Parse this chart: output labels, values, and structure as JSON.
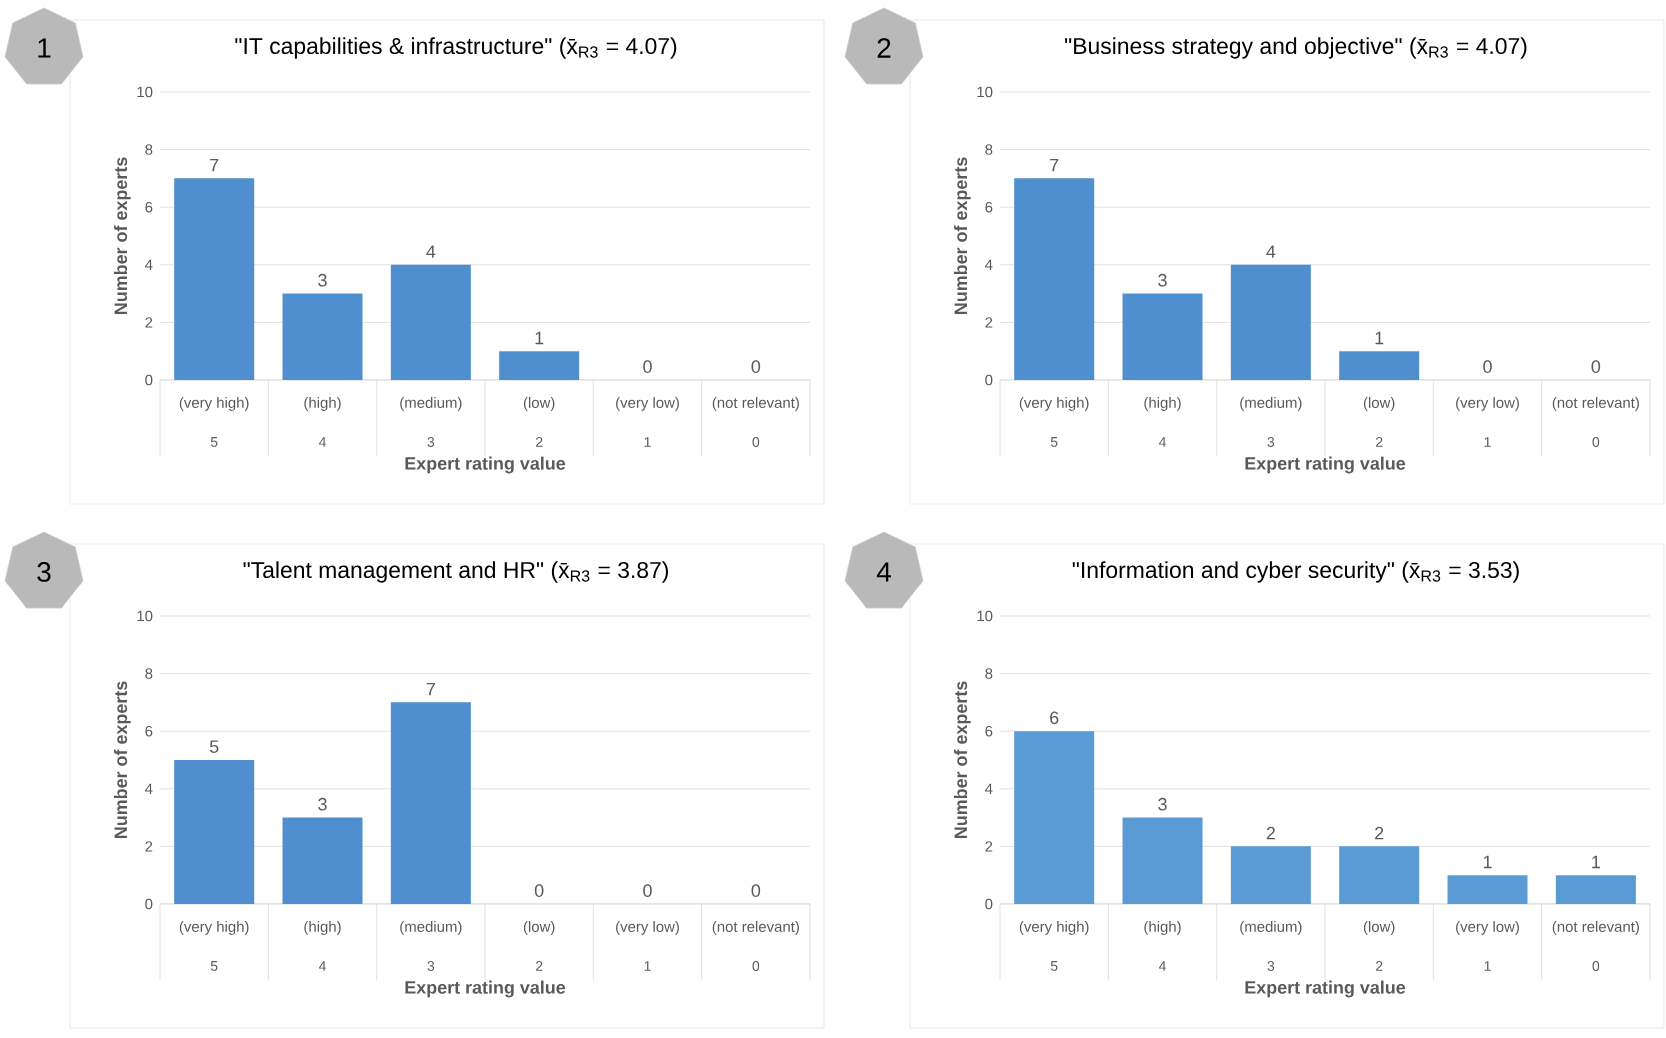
{
  "chart_data": [
    {
      "type": "bar",
      "title": "\"IT capabilities & infrastructure\" (x̄$_{R3}$ = 4.07)",
      "xlabel": "Expert rating value",
      "ylabel": "Number of experts",
      "categories": [
        "(very  high)",
        "(high)",
        "(medium)",
        "(low)",
        "(very low)",
        "(not relevant)"
      ],
      "values": [
        7,
        3,
        4,
        1,
        0,
        0
      ],
      "color": "#4f8fcf",
      "ylim": [
        0,
        10
      ],
      "yticks": [
        0,
        2,
        4,
        6,
        8,
        10
      ],
      "grid": "y",
      "data_labels": true,
      "annotations": [
        "1",
        "5",
        "4",
        "3",
        "2",
        "1",
        "0"
      ]
    },
    {
      "type": "bar",
      "title": "\"Business strategy and objective\" (x̄$_{R3}$ = 4.07)",
      "xlabel": "Expert rating value",
      "ylabel": "Number of experts",
      "categories": [
        "(very  high)",
        "(high)",
        "(medium)",
        "(low)",
        "(very low)",
        "(not relevant)"
      ],
      "values": [
        7,
        3,
        4,
        1,
        0,
        0
      ],
      "color": "#4f8fcf",
      "ylim": [
        0,
        10
      ],
      "yticks": [
        0,
        2,
        4,
        6,
        8,
        10
      ],
      "grid": "y",
      "data_labels": true,
      "annotations": [
        "2",
        "5",
        "4",
        "3",
        "2",
        "1",
        "0"
      ]
    },
    {
      "type": "bar",
      "title": "\"Talent management and HR\" (x̄$_{R3}$ = 3.87)",
      "xlabel": "Expert rating value",
      "ylabel": "Number of experts",
      "categories": [
        "(very  high)",
        "(high)",
        "(medium)",
        "(low)",
        "(very low)",
        "(not relevant)"
      ],
      "values": [
        5,
        3,
        7,
        0,
        0,
        0
      ],
      "color": "#4f8fcf",
      "ylim": [
        0,
        10
      ],
      "yticks": [
        0,
        2,
        4,
        6,
        8,
        10
      ],
      "grid": "y",
      "data_labels": true,
      "annotations": [
        "3",
        "5",
        "4",
        "3",
        "2",
        "1",
        "0"
      ]
    },
    {
      "type": "bar",
      "title": "\"Information and cyber security\" (x̄$_{R3}$ = 3.53)",
      "xlabel": "Expert rating value",
      "ylabel": "Number of experts",
      "categories": [
        "(very  high)",
        "(high)",
        "(medium)",
        "(low)",
        "(very low)",
        "(not relevant)"
      ],
      "values": [
        6,
        3,
        2,
        2,
        1,
        1
      ],
      "color": "#5b9bd5",
      "ylim": [
        0,
        10
      ],
      "yticks": [
        0,
        2,
        4,
        6,
        8,
        10
      ],
      "grid": "y",
      "data_labels": true,
      "annotations": [
        "4",
        "5",
        "4",
        "3",
        "2",
        "1",
        "0"
      ]
    }
  ]
}
